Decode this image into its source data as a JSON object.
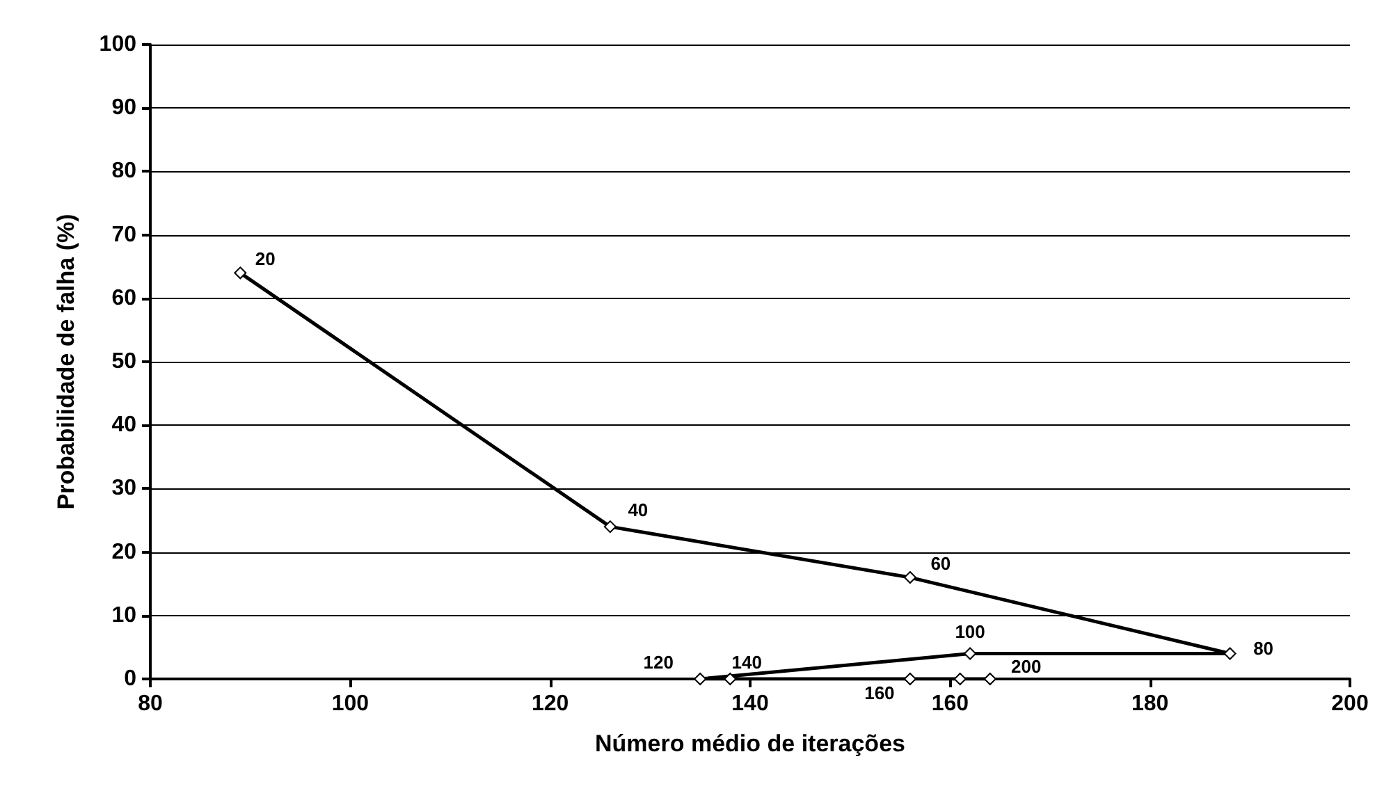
{
  "chart_data": {
    "type": "line",
    "xlabel": "Número médio de iterações",
    "ylabel": "Probabilidade de falha (%)",
    "series": [
      {
        "color": "#000000",
        "x": [
          89,
          126,
          156,
          188,
          162,
          135,
          138,
          156,
          161,
          164
        ],
        "values": [
          64,
          24,
          16,
          4,
          4,
          0,
          0,
          0,
          0,
          0
        ]
      }
    ],
    "xlim": [
      80,
      200
    ],
    "xticks": [
      80,
      100,
      120,
      140,
      160,
      180,
      200
    ],
    "ylim": [
      0,
      100
    ],
    "yticks": [
      0,
      10,
      20,
      30,
      40,
      50,
      60,
      70,
      80,
      90,
      100
    ],
    "grid": "y",
    "marker": "diamond",
    "line_style": "solid",
    "annotations": [
      {
        "text": "20",
        "x": 89,
        "y": 64
      },
      {
        "text": "40",
        "x": 126,
        "y": 24
      },
      {
        "text": "60",
        "x": 156,
        "y": 16
      },
      {
        "text": "80",
        "x": 188,
        "y": 4
      },
      {
        "text": "100",
        "x": 162,
        "y": 4
      },
      {
        "text": "120",
        "x": 135,
        "y": 0
      },
      {
        "text": "140",
        "x": 138,
        "y": 0
      },
      {
        "text": "160",
        "x": 156,
        "y": 0
      },
      {
        "text": "200",
        "x": 164,
        "y": 0
      }
    ]
  }
}
